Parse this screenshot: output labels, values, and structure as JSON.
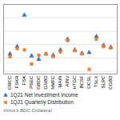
{
  "chart_data": {
    "type": "scatter",
    "categories": [
      "ORCC",
      "FSKR",
      "FSK",
      "PSEC",
      "GBDC",
      "GSBD",
      "NMFC",
      "MAIN",
      "AINV",
      "HTGC",
      "BCSF",
      "OCSL",
      "TSLX",
      "SLRC",
      "CGBD"
    ],
    "series": [
      {
        "name": "1Q21 Net Investment Income",
        "color": "#4472c4",
        "marker": "triangle",
        "values": [
          0.33,
          0.385,
          0.62,
          0.315,
          0.29,
          0.33,
          0.32,
          0.36,
          0.44,
          0.36,
          0.335,
          0.34,
          0.46,
          0.395,
          0.38
        ]
      },
      {
        "name": "1Q21 Quarterly Distribution",
        "color": "#ed7d31",
        "marker": "square",
        "values": [
          0.31,
          0.37,
          0.36,
          0.255,
          0.32,
          0.33,
          0.31,
          0.345,
          0.43,
          0.355,
          0.33,
          0.215,
          0.44,
          0.385,
          0.375
        ]
      }
    ],
    "ylim": [
      0.18,
      0.7
    ],
    "yticks": [
      0.2,
      0.3,
      0.4,
      0.5,
      0.6,
      0.7
    ],
    "grid": true,
    "tick_labels": "x",
    "legend": "bottom",
    "annotations": [
      "Virtus's BDC Collateral"
    ]
  }
}
